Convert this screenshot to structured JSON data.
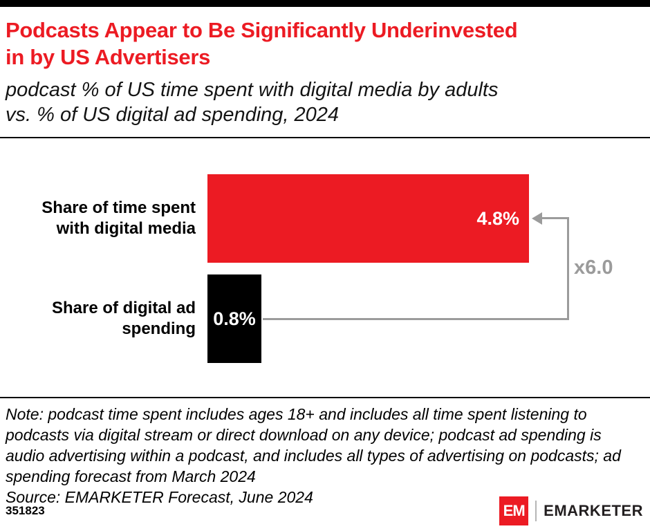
{
  "header": {
    "title_line1": "Podcasts Appear to Be Significantly Underinvested",
    "title_line2": "in by US Advertisers",
    "subtitle_line1": "podcast % of US time spent with digital media by adults",
    "subtitle_line2": "vs. % of US digital ad spending, 2024"
  },
  "chart_data": {
    "type": "bar",
    "orientation": "horizontal",
    "title": "podcast % of US time spent with digital media by adults vs. % of US digital ad spending, 2024",
    "categories": [
      "Share of time spent with digital media",
      "Share of digital ad spending"
    ],
    "values": [
      4.8,
      0.8
    ],
    "value_labels": [
      "4.8%",
      "0.8%"
    ],
    "bar_colors": [
      "#EC1B23",
      "#000000"
    ],
    "annotation_label": "x6.0",
    "xlim": [
      0,
      5
    ],
    "grid": false,
    "legend": false
  },
  "notes": {
    "note": "Note: podcast time spent includes ages 18+ and includes all time spent listening to podcasts via digital stream or direct download on any device; podcast ad spending is audio advertising within a podcast, and includes all types of advertising on podcasts; ad spending forecast from March 2024",
    "source": "Source: EMARKETER Forecast, June 2024"
  },
  "footer": {
    "chart_id": "351823",
    "logo_mark": "EM",
    "logo_text": "EMARKETER"
  },
  "colors": {
    "accent_red": "#EC1B23",
    "bar_black": "#000000",
    "annotation_gray": "#9B9B9B"
  }
}
